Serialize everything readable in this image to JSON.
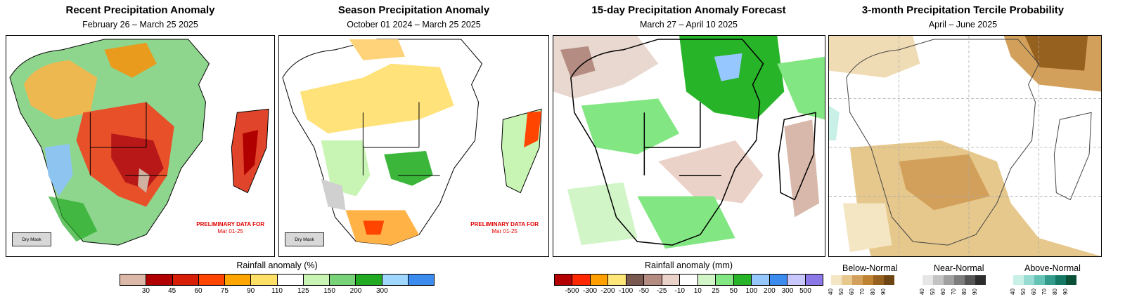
{
  "panels": [
    {
      "title": "Recent Precipitation Anomaly",
      "subtitle": "February 26 – March 25 2025"
    },
    {
      "title": "Season Precipitation Anomaly",
      "subtitle": "October 01 2024 – March 25 2025"
    },
    {
      "title": "15-day Precipitation Anomaly Forecast",
      "subtitle": "March 27 – April 10 2025"
    },
    {
      "title": "3-month Precipitation Tercile Probability",
      "subtitle": "April – June 2025"
    }
  ],
  "preliminary": {
    "line1": "PRELIMINARY DATA FOR",
    "line2": "Mar 01-25"
  },
  "dry_mask_label": "Dry Mask",
  "legend_percent": {
    "title": "Rainfall anomaly (%)",
    "colors": [
      "#dcb8a8",
      "#b00000",
      "#d81e05",
      "#ff4500",
      "#ffa500",
      "#ffe066",
      "#ffffff",
      "#c8f5b4",
      "#78d278",
      "#22aa22",
      "#a0d7ff",
      "#3c8cf0"
    ],
    "ticks": [
      "30",
      "45",
      "60",
      "75",
      "90",
      "110",
      "125",
      "150",
      "200",
      "300"
    ]
  },
  "legend_mm": {
    "title": "Rainfall anomaly (mm)",
    "colors": [
      "#b40000",
      "#ff2800",
      "#ffa000",
      "#ffe678",
      "#7a5a50",
      "#b48c82",
      "#ebd2c8",
      "#ffffff",
      "#d2f5c8",
      "#82e682",
      "#28b428",
      "#96c8ff",
      "#3c8cf0",
      "#c8c8ff",
      "#8c78e6"
    ],
    "ticks": [
      "-500",
      "-300",
      "-200",
      "-100",
      "-50",
      "-25",
      "-10",
      "10",
      "25",
      "50",
      "100",
      "200",
      "300",
      "500"
    ]
  },
  "tercile_legend": {
    "groups": [
      {
        "label": "Below-Normal",
        "colors": [
          "#f5e6c3",
          "#e6c88c",
          "#d2a05a",
          "#be8232",
          "#96601e",
          "#6e4614"
        ],
        "ticks": [
          "40",
          "50",
          "60",
          "70",
          "80",
          "90"
        ]
      },
      {
        "label": "Near-Normal",
        "colors": [
          "#e6e6e6",
          "#c3c3c3",
          "#a0a0a0",
          "#7d7d7d",
          "#555555",
          "#2d2d2d"
        ],
        "ticks": [
          "40",
          "50",
          "60",
          "70",
          "80",
          "90"
        ]
      },
      {
        "label": "Above-Normal",
        "colors": [
          "#c8f0e6",
          "#96dcd2",
          "#64c3b4",
          "#329b8c",
          "#147864",
          "#0a5037"
        ],
        "ticks": [
          "40",
          "50",
          "60",
          "70",
          "80",
          "90"
        ]
      }
    ]
  }
}
